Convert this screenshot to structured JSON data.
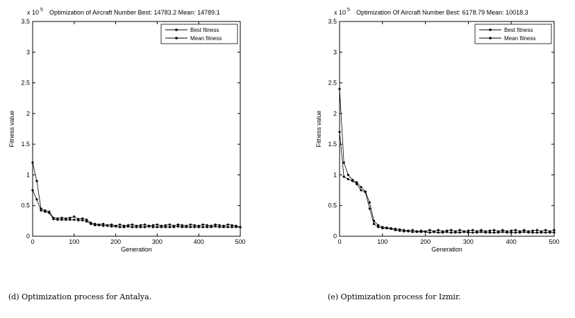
{
  "chart_data": [
    {
      "type": "line",
      "title": "Optimization of Aircraft Number Best: 14783.2 Mean: 14789.1",
      "multiplier": "x 10",
      "multiplier_exponent": "5",
      "x_label": "Generation",
      "y_label": "Fitness value",
      "caption": "(d) Optimization process for Antalya.",
      "legend": "upper-right",
      "x": [
        0,
        10,
        20,
        30,
        40,
        50,
        60,
        70,
        80,
        90,
        100,
        110,
        120,
        130,
        140,
        150,
        160,
        170,
        180,
        190,
        200,
        210,
        220,
        230,
        240,
        250,
        260,
        270,
        280,
        290,
        300,
        310,
        320,
        330,
        340,
        350,
        360,
        370,
        380,
        390,
        400,
        410,
        420,
        430,
        440,
        450,
        460,
        470,
        480,
        490,
        500
      ],
      "series": [
        {
          "name": "Best fitness",
          "color": "#000000",
          "values": [
            0.75,
            0.6,
            0.42,
            0.4,
            0.38,
            0.28,
            0.27,
            0.27,
            0.27,
            0.27,
            0.27,
            0.26,
            0.26,
            0.24,
            0.2,
            0.18,
            0.18,
            0.17,
            0.17,
            0.16,
            0.16,
            0.15,
            0.15,
            0.16,
            0.15,
            0.15,
            0.15,
            0.15,
            0.16,
            0.15,
            0.15,
            0.15,
            0.15,
            0.15,
            0.15,
            0.16,
            0.15,
            0.15,
            0.15,
            0.15,
            0.15,
            0.15,
            0.15,
            0.15,
            0.16,
            0.15,
            0.15,
            0.15,
            0.15,
            0.15,
            0.148
          ]
        },
        {
          "name": "Mean fitness",
          "color": "#000000",
          "values": [
            1.2,
            0.9,
            0.45,
            0.42,
            0.4,
            0.3,
            0.29,
            0.3,
            0.29,
            0.3,
            0.32,
            0.28,
            0.29,
            0.27,
            0.22,
            0.2,
            0.19,
            0.2,
            0.18,
            0.19,
            0.17,
            0.19,
            0.17,
            0.18,
            0.19,
            0.17,
            0.18,
            0.19,
            0.17,
            0.18,
            0.19,
            0.17,
            0.18,
            0.19,
            0.17,
            0.19,
            0.18,
            0.17,
            0.19,
            0.18,
            0.17,
            0.19,
            0.18,
            0.17,
            0.19,
            0.18,
            0.17,
            0.19,
            0.18,
            0.17,
            0.148
          ]
        }
      ],
      "xlim": [
        0,
        500
      ],
      "xticks": [
        0,
        100,
        200,
        300,
        400,
        500
      ],
      "ylim": [
        0,
        3.5
      ],
      "yticks": [
        0,
        0.5,
        1,
        1.5,
        2,
        2.5,
        3,
        3.5
      ]
    },
    {
      "type": "line",
      "title": "Optimization Of Aircraft Number Best: 6178.79 Mean: 10018.3",
      "multiplier": "x 10",
      "multiplier_exponent": "5",
      "x_label": "Generation",
      "y_label": "Fitness value",
      "caption": "(e) Optimization process for  Izmir.",
      "legend": "upper-right",
      "x": [
        0,
        10,
        20,
        30,
        40,
        50,
        60,
        70,
        80,
        90,
        100,
        110,
        120,
        130,
        140,
        150,
        160,
        170,
        180,
        190,
        200,
        210,
        220,
        230,
        240,
        250,
        260,
        270,
        280,
        290,
        300,
        310,
        320,
        330,
        340,
        350,
        360,
        370,
        380,
        390,
        400,
        410,
        420,
        430,
        440,
        450,
        460,
        470,
        480,
        490,
        500
      ],
      "series": [
        {
          "name": "Best fitness",
          "color": "#000000",
          "values": [
            1.7,
            0.97,
            0.93,
            0.9,
            0.85,
            0.75,
            0.72,
            0.45,
            0.2,
            0.15,
            0.13,
            0.13,
            0.12,
            0.1,
            0.09,
            0.08,
            0.08,
            0.07,
            0.07,
            0.07,
            0.07,
            0.06,
            0.07,
            0.06,
            0.06,
            0.07,
            0.06,
            0.06,
            0.06,
            0.07,
            0.06,
            0.06,
            0.06,
            0.07,
            0.06,
            0.06,
            0.06,
            0.06,
            0.07,
            0.06,
            0.06,
            0.06,
            0.06,
            0.07,
            0.06,
            0.06,
            0.06,
            0.06,
            0.06,
            0.06,
            0.062
          ]
        },
        {
          "name": "Mean fitness",
          "color": "#000000",
          "values": [
            2.4,
            1.2,
            1.0,
            0.92,
            0.88,
            0.8,
            0.73,
            0.55,
            0.25,
            0.18,
            0.15,
            0.14,
            0.13,
            0.12,
            0.11,
            0.1,
            0.09,
            0.1,
            0.08,
            0.09,
            0.08,
            0.1,
            0.08,
            0.1,
            0.08,
            0.09,
            0.1,
            0.08,
            0.1,
            0.08,
            0.09,
            0.1,
            0.08,
            0.1,
            0.08,
            0.09,
            0.1,
            0.08,
            0.1,
            0.08,
            0.09,
            0.1,
            0.08,
            0.1,
            0.08,
            0.09,
            0.1,
            0.08,
            0.1,
            0.08,
            0.1
          ]
        }
      ],
      "xlim": [
        0,
        500
      ],
      "xticks": [
        0,
        100,
        200,
        300,
        400,
        500
      ],
      "ylim": [
        0,
        3.5
      ],
      "yticks": [
        0,
        0.5,
        1,
        1.5,
        2,
        2.5,
        3,
        3.5
      ]
    }
  ]
}
